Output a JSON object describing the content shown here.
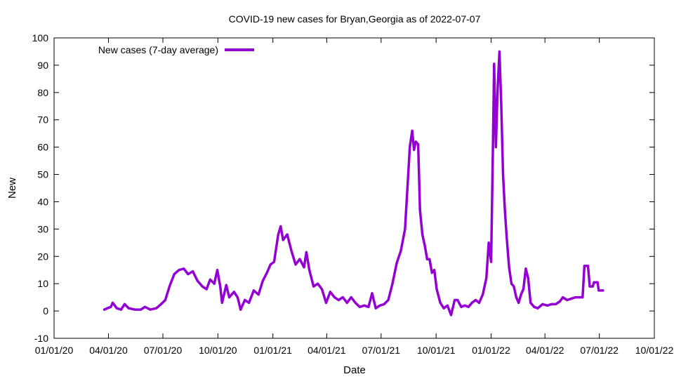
{
  "chart_data": {
    "type": "line",
    "title": "COVID-19 new cases for Bryan,Georgia as of 2022-07-07",
    "xlabel": "Date",
    "ylabel": "New",
    "xlim": [
      "2020-01-01",
      "2022-10-01"
    ],
    "ylim": [
      -10,
      100
    ],
    "x_ticks": [
      "01/01/20",
      "04/01/20",
      "07/01/20",
      "10/01/20",
      "01/01/21",
      "04/01/21",
      "07/01/21",
      "10/01/21",
      "01/01/22",
      "04/01/22",
      "07/01/22",
      "10/01/22"
    ],
    "y_ticks": [
      -10,
      0,
      10,
      20,
      30,
      40,
      50,
      60,
      70,
      80,
      90,
      100
    ],
    "grid": false,
    "legend_position": "top-left",
    "series": [
      {
        "name": "New cases (7-day average)",
        "color": "#9400d3",
        "points": [
          [
            "2020-03-25",
            0.5
          ],
          [
            "2020-03-30",
            1
          ],
          [
            "2020-04-05",
            1.5
          ],
          [
            "2020-04-08",
            3
          ],
          [
            "2020-04-15",
            1
          ],
          [
            "2020-04-22",
            0.5
          ],
          [
            "2020-04-28",
            2.5
          ],
          [
            "2020-05-05",
            1
          ],
          [
            "2020-05-15",
            0.5
          ],
          [
            "2020-05-25",
            0.5
          ],
          [
            "2020-06-01",
            1.5
          ],
          [
            "2020-06-10",
            0.5
          ],
          [
            "2020-06-20",
            1
          ],
          [
            "2020-06-28",
            2.5
          ],
          [
            "2020-07-05",
            4
          ],
          [
            "2020-07-12",
            9
          ],
          [
            "2020-07-20",
            13.5
          ],
          [
            "2020-07-28",
            15
          ],
          [
            "2020-08-05",
            15.5
          ],
          [
            "2020-08-12",
            13.5
          ],
          [
            "2020-08-20",
            14.5
          ],
          [
            "2020-08-28",
            11
          ],
          [
            "2020-09-05",
            9
          ],
          [
            "2020-09-12",
            8
          ],
          [
            "2020-09-18",
            11.5
          ],
          [
            "2020-09-25",
            10
          ],
          [
            "2020-09-30",
            15
          ],
          [
            "2020-10-05",
            9
          ],
          [
            "2020-10-08",
            3
          ],
          [
            "2020-10-15",
            9.5
          ],
          [
            "2020-10-20",
            5
          ],
          [
            "2020-10-28",
            7
          ],
          [
            "2020-11-03",
            5
          ],
          [
            "2020-11-08",
            0.5
          ],
          [
            "2020-11-15",
            4
          ],
          [
            "2020-11-22",
            3
          ],
          [
            "2020-11-30",
            7.5
          ],
          [
            "2020-12-08",
            6
          ],
          [
            "2020-12-15",
            11
          ],
          [
            "2020-12-22",
            14
          ],
          [
            "2020-12-28",
            17
          ],
          [
            "2021-01-03",
            18
          ],
          [
            "2021-01-10",
            28
          ],
          [
            "2021-01-14",
            31
          ],
          [
            "2021-01-18",
            26
          ],
          [
            "2021-01-25",
            28
          ],
          [
            "2021-02-01",
            22
          ],
          [
            "2021-02-08",
            17
          ],
          [
            "2021-02-15",
            19
          ],
          [
            "2021-02-22",
            16
          ],
          [
            "2021-02-26",
            21.5
          ],
          [
            "2021-03-03",
            15
          ],
          [
            "2021-03-10",
            9
          ],
          [
            "2021-03-17",
            10
          ],
          [
            "2021-03-24",
            8
          ],
          [
            "2021-03-31",
            3
          ],
          [
            "2021-04-07",
            7
          ],
          [
            "2021-04-14",
            5
          ],
          [
            "2021-04-21",
            4
          ],
          [
            "2021-04-28",
            5
          ],
          [
            "2021-05-05",
            3
          ],
          [
            "2021-05-12",
            5
          ],
          [
            "2021-05-19",
            3
          ],
          [
            "2021-05-26",
            1.5
          ],
          [
            "2021-06-03",
            2
          ],
          [
            "2021-06-10",
            1.5
          ],
          [
            "2021-06-16",
            6.5
          ],
          [
            "2021-06-22",
            1
          ],
          [
            "2021-06-29",
            2
          ],
          [
            "2021-07-06",
            2.5
          ],
          [
            "2021-07-13",
            4
          ],
          [
            "2021-07-20",
            10
          ],
          [
            "2021-07-27",
            17.5
          ],
          [
            "2021-08-03",
            22
          ],
          [
            "2021-08-10",
            30
          ],
          [
            "2021-08-14",
            45
          ],
          [
            "2021-08-18",
            60
          ],
          [
            "2021-08-22",
            66
          ],
          [
            "2021-08-25",
            59
          ],
          [
            "2021-08-28",
            62
          ],
          [
            "2021-09-01",
            61
          ],
          [
            "2021-09-04",
            37
          ],
          [
            "2021-09-08",
            28
          ],
          [
            "2021-09-12",
            24
          ],
          [
            "2021-09-16",
            19
          ],
          [
            "2021-09-20",
            19
          ],
          [
            "2021-09-24",
            14
          ],
          [
            "2021-09-28",
            15
          ],
          [
            "2021-10-02",
            8
          ],
          [
            "2021-10-08",
            3
          ],
          [
            "2021-10-14",
            1
          ],
          [
            "2021-10-20",
            2
          ],
          [
            "2021-10-26",
            -1.5
          ],
          [
            "2021-11-01",
            4
          ],
          [
            "2021-11-06",
            4
          ],
          [
            "2021-11-12",
            1.5
          ],
          [
            "2021-11-18",
            2
          ],
          [
            "2021-11-24",
            1.5
          ],
          [
            "2021-11-30",
            3
          ],
          [
            "2021-12-06",
            4
          ],
          [
            "2021-12-12",
            3
          ],
          [
            "2021-12-18",
            6
          ],
          [
            "2021-12-24",
            12
          ],
          [
            "2021-12-28",
            25
          ],
          [
            "2022-01-01",
            18
          ],
          [
            "2022-01-04",
            60
          ],
          [
            "2022-01-06",
            90.5
          ],
          [
            "2022-01-09",
            60
          ],
          [
            "2022-01-12",
            82
          ],
          [
            "2022-01-15",
            95
          ],
          [
            "2022-01-18",
            75
          ],
          [
            "2022-01-21",
            50
          ],
          [
            "2022-01-24",
            37
          ],
          [
            "2022-01-27",
            27
          ],
          [
            "2022-01-31",
            16
          ],
          [
            "2022-02-04",
            10
          ],
          [
            "2022-02-08",
            9
          ],
          [
            "2022-02-12",
            5
          ],
          [
            "2022-02-16",
            3
          ],
          [
            "2022-02-20",
            6
          ],
          [
            "2022-02-24",
            8
          ],
          [
            "2022-02-28",
            15.5
          ],
          [
            "2022-03-04",
            12
          ],
          [
            "2022-03-08",
            3
          ],
          [
            "2022-03-14",
            1.5
          ],
          [
            "2022-03-20",
            1
          ],
          [
            "2022-03-28",
            2.5
          ],
          [
            "2022-04-05",
            2
          ],
          [
            "2022-04-12",
            2.5
          ],
          [
            "2022-04-19",
            2.5
          ],
          [
            "2022-04-26",
            3.5
          ],
          [
            "2022-05-01",
            5
          ],
          [
            "2022-05-08",
            4
          ],
          [
            "2022-05-15",
            4.5
          ],
          [
            "2022-05-22",
            5
          ],
          [
            "2022-05-29",
            5
          ],
          [
            "2022-06-03",
            5
          ],
          [
            "2022-06-06",
            16.5
          ],
          [
            "2022-06-12",
            16.5
          ],
          [
            "2022-06-15",
            9
          ],
          [
            "2022-06-20",
            9
          ],
          [
            "2022-06-22",
            10.5
          ],
          [
            "2022-06-28",
            10.5
          ],
          [
            "2022-06-30",
            7.5
          ],
          [
            "2022-07-07",
            7.5
          ]
        ]
      }
    ]
  }
}
